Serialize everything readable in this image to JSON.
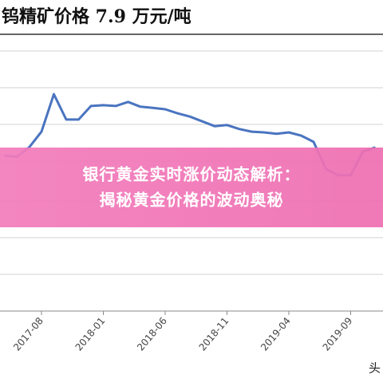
{
  "chart_data": {
    "type": "line",
    "title": "钨精矿价格 7.9 万元/吨",
    "categories": [
      null,
      null,
      null,
      "2017-08",
      null,
      null,
      null,
      null,
      "2018-01",
      null,
      null,
      null,
      null,
      "2018-06",
      null,
      null,
      null,
      null,
      "2018-11",
      null,
      null,
      null,
      null,
      "2019-04",
      null,
      null,
      null,
      null,
      "2019-09",
      null,
      null
    ],
    "values": [
      4.24,
      4.2,
      4.46,
      4.89,
      5.91,
      5.22,
      5.22,
      5.59,
      5.61,
      5.59,
      5.7,
      5.57,
      5.54,
      5.5,
      5.39,
      5.3,
      5.17,
      5.04,
      5.07,
      4.96,
      4.89,
      4.87,
      4.83,
      4.87,
      4.78,
      4.61,
      3.87,
      3.7,
      3.7,
      4.35,
      4.46
    ],
    "color": "#4a74c0",
    "ylim": [
      0,
      7.5
    ]
  },
  "overlay": {
    "lines": [
      "银行黄金实时涨价动态解析：",
      "揭秘黄金价格的波动奥秘"
    ]
  },
  "watermark": "头"
}
